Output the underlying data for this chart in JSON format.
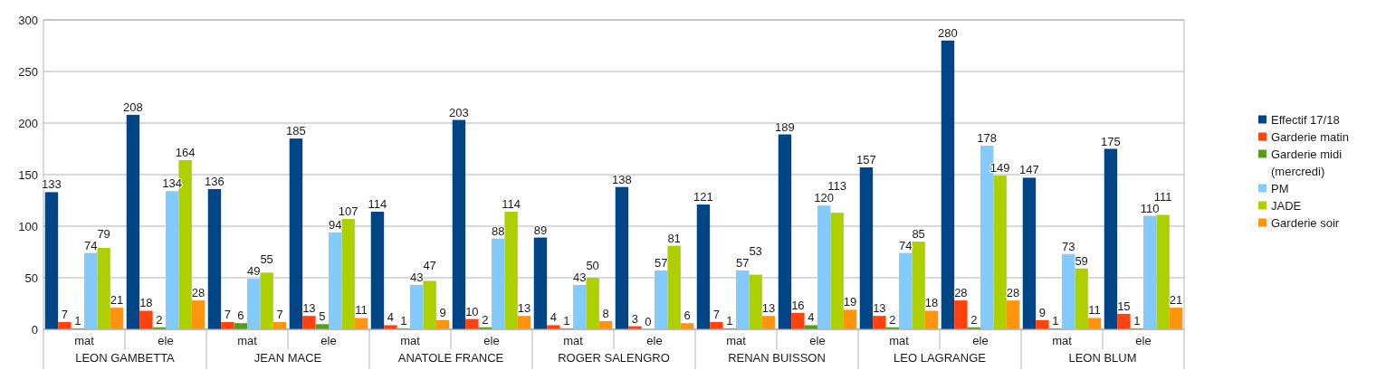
{
  "chart_data": {
    "type": "bar",
    "categories": [
      "mat",
      "ele",
      "mat",
      "ele",
      "mat",
      "ele",
      "mat",
      "ele",
      "mat",
      "ele",
      "mat",
      "ele",
      "mat",
      "ele"
    ],
    "annotations": [
      "LEON GAMBETTA",
      "JEAN MACE",
      "ANATOLE FRANCE",
      "ROGER SALENGRO",
      "RENAN BUISSON",
      "LEO LAGRANGE",
      "LEON BLUM"
    ],
    "series": [
      {
        "name": "Effectif 17/18",
        "color": "#004586",
        "values": [
          133,
          208,
          136,
          185,
          114,
          203,
          89,
          138,
          121,
          189,
          157,
          280,
          147,
          175
        ]
      },
      {
        "name": "Garderie matin",
        "color": "#ff420e",
        "values": [
          7,
          18,
          7,
          13,
          4,
          10,
          4,
          3,
          7,
          16,
          13,
          28,
          9,
          15
        ]
      },
      {
        "name": "Garderie midi (mercredi)",
        "color": "#579d1c",
        "values": [
          1,
          2,
          6,
          5,
          1,
          2,
          1,
          0,
          1,
          4,
          2,
          2,
          1,
          1
        ]
      },
      {
        "name": "PM",
        "color": "#83caff",
        "values": [
          74,
          134,
          49,
          94,
          43,
          88,
          43,
          57,
          57,
          120,
          74,
          178,
          73,
          110
        ]
      },
      {
        "name": "JADE",
        "color": "#aecf00",
        "values": [
          79,
          164,
          55,
          107,
          47,
          114,
          50,
          81,
          53,
          113,
          85,
          149,
          59,
          111
        ]
      },
      {
        "name": "Garderie soir",
        "color": "#ff950e",
        "values": [
          21,
          28,
          7,
          11,
          9,
          13,
          8,
          6,
          13,
          19,
          18,
          28,
          11,
          21
        ]
      }
    ],
    "ylim": [
      0,
      300
    ],
    "yticks": [
      0,
      50,
      100,
      150,
      200,
      250,
      300
    ],
    "grid": "y",
    "legend": "right",
    "data_labels": true
  }
}
